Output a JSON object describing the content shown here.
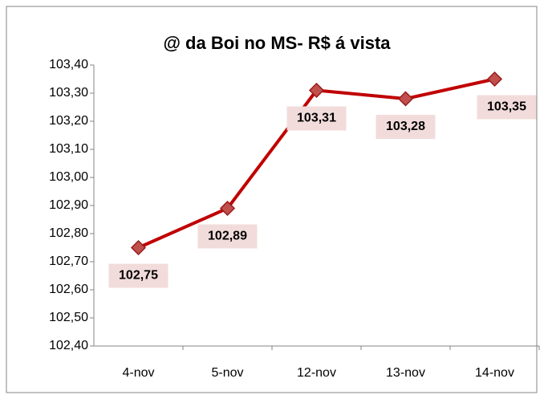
{
  "chart_data": {
    "type": "line",
    "title": "@ da Boi no MS- R$ á vista",
    "categories": [
      "4-nov",
      "5-nov",
      "12-nov",
      "13-nov",
      "14-nov"
    ],
    "series": [
      {
        "name": "@ da Boi no MS- R$ á vista",
        "color": "#c00000",
        "values": [
          102.75,
          102.89,
          103.31,
          103.28,
          103.35
        ],
        "value_labels": [
          "102,75",
          "102,89",
          "103,31",
          "103,28",
          "103,35"
        ]
      }
    ],
    "ylim": [
      102.4,
      103.4
    ],
    "yticks": [
      {
        "value": 102.4,
        "label": "102,40"
      },
      {
        "value": 102.5,
        "label": "102,50"
      },
      {
        "value": 102.6,
        "label": "102,60"
      },
      {
        "value": 102.7,
        "label": "102,70"
      },
      {
        "value": 102.8,
        "label": "102,80"
      },
      {
        "value": 102.9,
        "label": "102,90"
      },
      {
        "value": 103.0,
        "label": "103,00"
      },
      {
        "value": 103.1,
        "label": "103,10"
      },
      {
        "value": 103.2,
        "label": "103,20"
      },
      {
        "value": 103.3,
        "label": "103,30"
      },
      {
        "value": 103.4,
        "label": "103,40"
      }
    ],
    "grid": false
  }
}
